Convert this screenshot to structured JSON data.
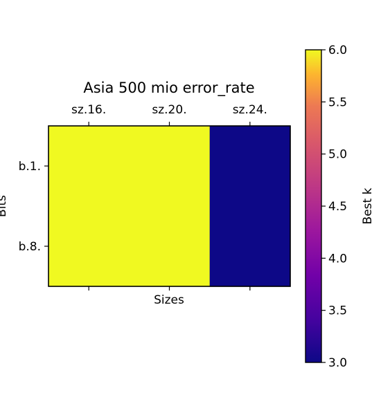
{
  "chart_data": {
    "type": "heatmap",
    "title": "Asia 500 mio error_rate",
    "xlabel": "Sizes",
    "ylabel": "Bits",
    "x_categories": [
      "sz.16.",
      "sz.20.",
      "sz.24."
    ],
    "y_categories": [
      "b.1.",
      "b.8."
    ],
    "values": [
      [
        6,
        6,
        3
      ],
      [
        6,
        6,
        3
      ]
    ],
    "colormap": "plasma",
    "colorbar": {
      "label": "Best k",
      "range": [
        3.0,
        6.0
      ],
      "ticks": [
        "3.0",
        "3.5",
        "4.0",
        "4.5",
        "5.0",
        "5.5",
        "6.0"
      ]
    },
    "x_ticks_position": "top",
    "grid": false
  }
}
